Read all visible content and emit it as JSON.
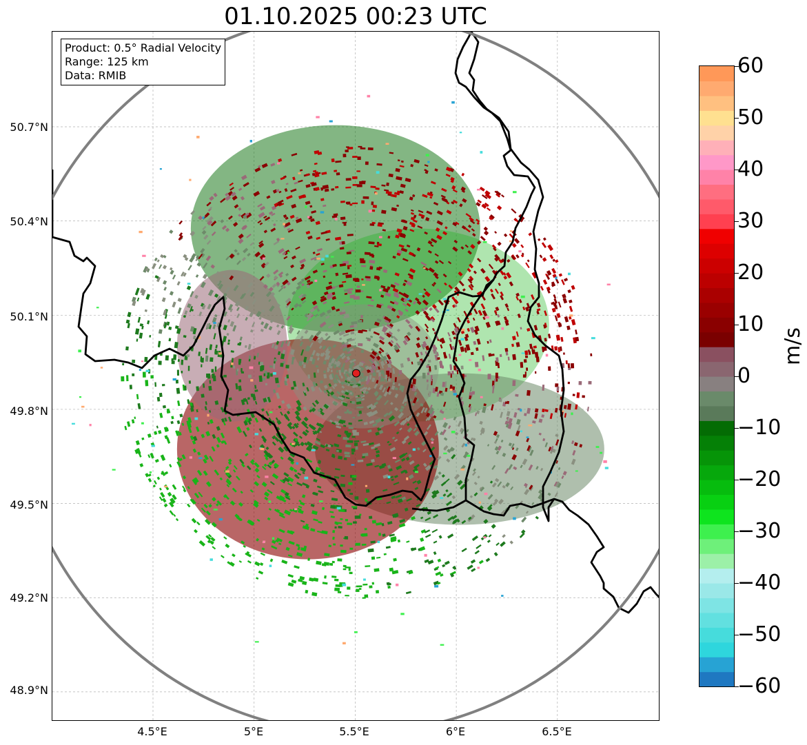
{
  "title": "01.10.2025 00:23 UTC",
  "info": {
    "product": "Product: 0.5° Radial Velocity",
    "range": "Range: 125 km",
    "source": "Data: RMIB"
  },
  "axes": {
    "lat_labels": [
      "50.7°N",
      "50.4°N",
      "50.1°N",
      "49.8°N",
      "49.5°N",
      "49.2°N",
      "48.9°N"
    ],
    "lon_labels": [
      "4.5°E",
      "5°E",
      "5.5°E",
      "6°E",
      "6.5°E"
    ],
    "lat_values": [
      50.7,
      50.4,
      50.1,
      49.8,
      49.5,
      49.2,
      48.9
    ],
    "lon_values": [
      4.5,
      5.0,
      5.5,
      6.0,
      6.5
    ],
    "lon_range": [
      4.0,
      7.0
    ],
    "lat_range": [
      48.8,
      50.98
    ]
  },
  "radar": {
    "site_lon": 5.505,
    "site_lat": 49.915,
    "range_km": 125,
    "marker_color": "#e02020",
    "range_ring_color": "#808080"
  },
  "colorbar": {
    "label": "m/s",
    "tick_labels": [
      "60",
      "50",
      "40",
      "30",
      "20",
      "10",
      "0",
      "−10",
      "−20",
      "−30",
      "−40",
      "−50",
      "−60"
    ],
    "min": -60,
    "max": 60,
    "colors": [
      "#1f78c1",
      "#27a3d4",
      "#2ed6dd",
      "#46dcdc",
      "#62e0e0",
      "#7ee4e4",
      "#9ae8e8",
      "#b4eeee",
      "#9cf0a8",
      "#6ef07a",
      "#3ef04e",
      "#0ee41e",
      "#08d012",
      "#06bc0e",
      "#06a80c",
      "#069408",
      "#058006",
      "#046c04",
      "#5a7a5a",
      "#6a8a6a",
      "#888080",
      "#8a6670",
      "#8a5060",
      "#7a0000",
      "#8a0000",
      "#9a0000",
      "#aa0000",
      "#bc0000",
      "#cc0000",
      "#dd0000",
      "#f00000",
      "#ff4050",
      "#ff5a6a",
      "#ff6e80",
      "#ff82a8",
      "#ff98c8",
      "#ffb0b8",
      "#ffd2a8",
      "#ffe090",
      "#ffc080",
      "#ffaa70",
      "#ff9858"
    ]
  },
  "layers": {
    "border_color": "#000000",
    "grid_color": "#b0b0b0",
    "echo_palette": {
      "approaching_dark": "#1e7a1e",
      "approaching_bright": "#19b419",
      "near_zero": "#8a9080",
      "receding_dark": "#8a0000",
      "receding_bright": "#c00000",
      "pinkish": "#9a6a78"
    }
  }
}
